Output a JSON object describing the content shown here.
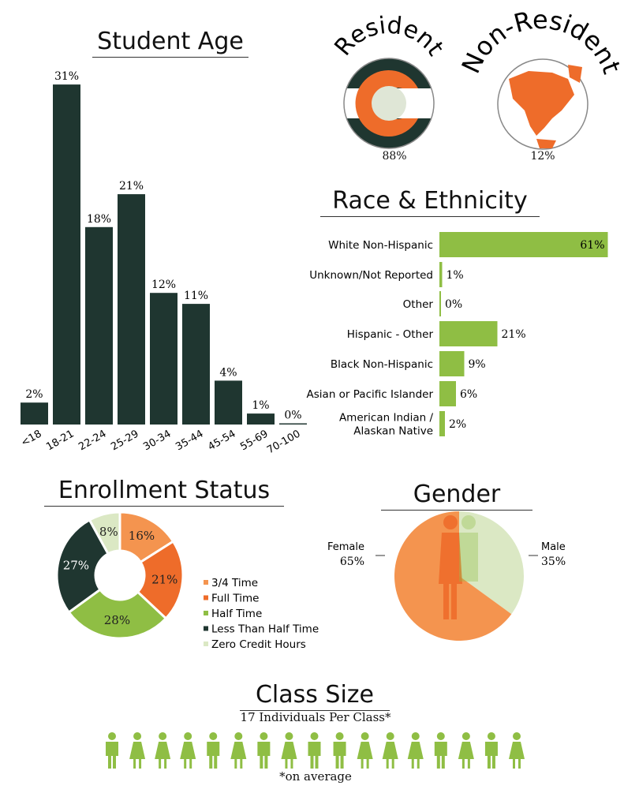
{
  "colors": {
    "dark": "#1f3630",
    "orange": "#ee6c2a",
    "light_orange": "#f4944f",
    "green": "#8fbe44",
    "pale_green": "#dbe8c4"
  },
  "chart_data": [
    {
      "type": "bar",
      "title": "Student Age",
      "categories": [
        "<18",
        "18-21",
        "22-24",
        "25-29",
        "30-34",
        "35-44",
        "45-54",
        "55-69",
        "70-100"
      ],
      "values": [
        2,
        31,
        18,
        21,
        12,
        11,
        4,
        1,
        0
      ],
      "value_labels": [
        "2%",
        "31%",
        "18%",
        "21%",
        "12%",
        "11%",
        "4%",
        "1%",
        "0%"
      ],
      "unit": "%"
    },
    {
      "type": "bar",
      "orientation": "horizontal",
      "title": "Race & Ethnicity",
      "categories": [
        "White Non-Hispanic",
        "Unknown/Not Reported",
        "Other",
        "Hispanic - Other",
        "Black Non-Hispanic",
        "Asian or Pacific Islander",
        "American Indian / Alaskan Native"
      ],
      "values": [
        61,
        1,
        0,
        21,
        9,
        6,
        2
      ],
      "value_labels": [
        "61%",
        "1%",
        "0%",
        "21%",
        "9%",
        "6%",
        "2%"
      ],
      "unit": "%"
    },
    {
      "type": "pie",
      "style": "donut",
      "title": "Enrollment Status",
      "categories": [
        "3/4 Time",
        "Full Time",
        "Half Time",
        "Less Than Half Time",
        "Zero Credit Hours"
      ],
      "values": [
        16,
        21,
        28,
        27,
        8
      ],
      "value_labels": [
        "16%",
        "21%",
        "28%",
        "27%",
        "8%"
      ],
      "legend": "right"
    },
    {
      "type": "pie",
      "title": "Gender",
      "categories": [
        "Male",
        "Female"
      ],
      "values": [
        35,
        65
      ],
      "value_labels": [
        "35%",
        "65%"
      ]
    }
  ],
  "residency": {
    "resident_label": "Resident",
    "resident_value": "88%",
    "nonresident_label": "Non-Resident",
    "nonresident_value": "12%"
  },
  "class_size": {
    "title": "Class Size",
    "subtitle": "17 Individuals Per Class*",
    "footnote": "*on average",
    "count": 17,
    "pattern": [
      "m",
      "f",
      "f",
      "f",
      "m",
      "f",
      "m",
      "f",
      "m",
      "m",
      "f",
      "f",
      "f",
      "m",
      "f",
      "m",
      "f"
    ]
  }
}
